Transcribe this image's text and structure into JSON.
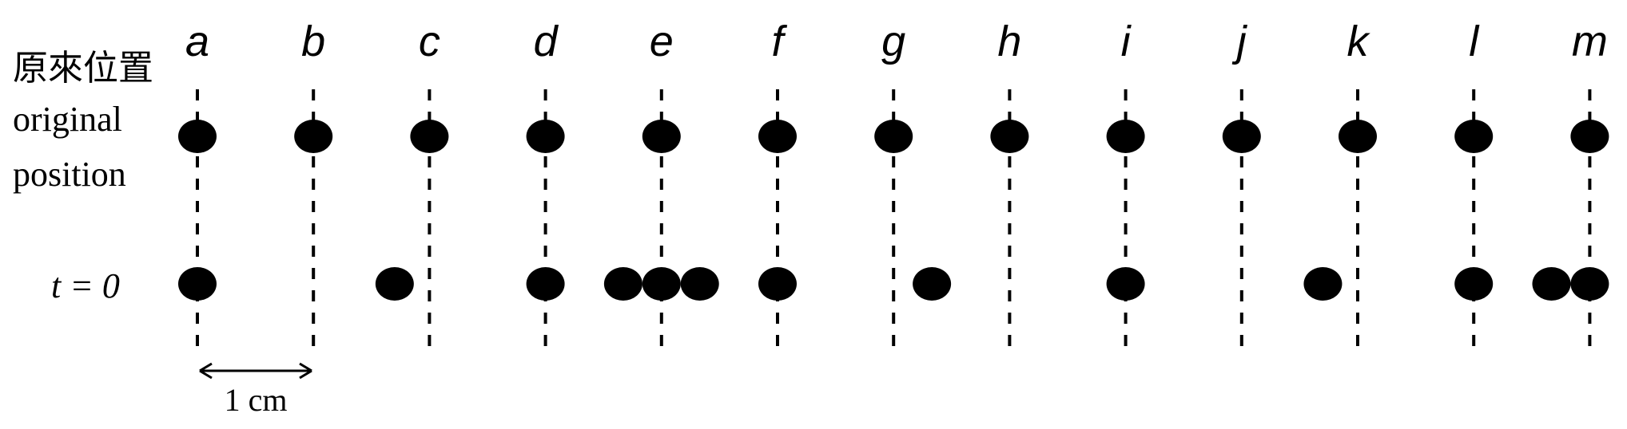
{
  "row_labels": {
    "original_zh": "原來位置",
    "original_en_1": "original",
    "original_en_2": "position",
    "t0": "t = 0"
  },
  "scale_label": "1 cm",
  "columns": [
    {
      "letter": "a",
      "shift_cm": 0
    },
    {
      "letter": "b",
      "shift_cm": 0
    },
    {
      "letter": "c",
      "shift_cm": 0
    },
    {
      "letter": "d",
      "shift_cm": 0
    },
    {
      "letter": "e",
      "shift_cm": 0
    },
    {
      "letter": "f",
      "shift_cm": 0
    },
    {
      "letter": "g",
      "shift_cm": 0
    },
    {
      "letter": "h",
      "shift_cm": 0
    },
    {
      "letter": "i",
      "shift_cm": 0
    },
    {
      "letter": "j",
      "shift_cm": 0
    },
    {
      "letter": "k",
      "shift_cm": 0
    },
    {
      "letter": "l",
      "shift_cm": 0
    },
    {
      "letter": "m",
      "shift_cm": 0
    }
  ],
  "t0_particles": [
    {
      "column": "a",
      "shift_cm": 0
    },
    {
      "column": "b",
      "shift_cm": 0.7
    },
    {
      "column": "d",
      "shift_cm": 0
    },
    {
      "column": "e",
      "shift_cm": -0.33
    },
    {
      "column": "e",
      "shift_cm": 0
    },
    {
      "column": "e",
      "shift_cm": 0.33
    },
    {
      "column": "f",
      "shift_cm": 0
    },
    {
      "column": "g",
      "shift_cm": 0.33
    },
    {
      "column": "i",
      "shift_cm": 0
    },
    {
      "column": "j",
      "shift_cm": 0.7
    },
    {
      "column": "l",
      "shift_cm": 0
    },
    {
      "column": "m",
      "shift_cm": -0.33
    },
    {
      "column": "m",
      "shift_cm": 0
    }
  ]
}
